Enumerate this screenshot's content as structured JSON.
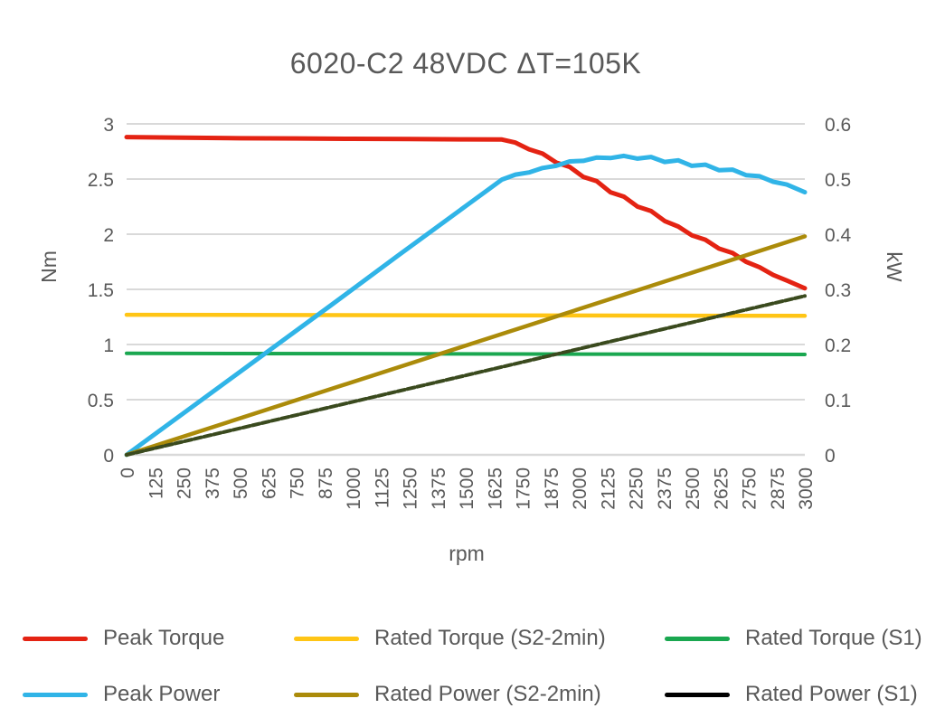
{
  "title": "6020-C2 48VDC ΔT=105K",
  "axes": {
    "x": {
      "label": "rpm",
      "min": 0,
      "max": 3000,
      "ticks": [
        0,
        125,
        250,
        375,
        500,
        625,
        750,
        875,
        1000,
        1125,
        1250,
        1375,
        1500,
        1625,
        1750,
        1875,
        2000,
        2125,
        2250,
        2375,
        2500,
        2625,
        2750,
        2875,
        3000
      ]
    },
    "y_left": {
      "label": "Nm",
      "min": 0,
      "max": 3,
      "ticks": [
        0,
        0.5,
        1,
        1.5,
        2,
        2.5,
        3
      ]
    },
    "y_right": {
      "label": "kW",
      "min": 0,
      "max": 0.6,
      "ticks": [
        0,
        0.1,
        0.2,
        0.3,
        0.4,
        0.5,
        0.6
      ]
    }
  },
  "chart_data": {
    "type": "line",
    "title": "6020-C2 48VDC ΔT=105K",
    "xlabel": "rpm",
    "ylabel_left": "Nm",
    "ylabel_right": "kW",
    "x_range": [
      0,
      3000
    ],
    "y_left_range": [
      0,
      3
    ],
    "y_right_range": [
      0,
      0.6
    ],
    "grid": true,
    "grid_color": "#d9d9d9",
    "legend_position": "bottom",
    "text_color": "#595959",
    "series": [
      {
        "name": "Peak Torque",
        "axis": "Nm",
        "color": "#e42313",
        "width": 5,
        "points": [
          [
            0,
            2.88
          ],
          [
            250,
            2.875
          ],
          [
            500,
            2.87
          ],
          [
            750,
            2.868
          ],
          [
            1000,
            2.865
          ],
          [
            1250,
            2.862
          ],
          [
            1500,
            2.86
          ],
          [
            1660,
            2.858
          ],
          [
            1720,
            2.83
          ],
          [
            1780,
            2.77
          ],
          [
            1840,
            2.73
          ],
          [
            1900,
            2.65
          ],
          [
            1960,
            2.61
          ],
          [
            2020,
            2.52
          ],
          [
            2080,
            2.48
          ],
          [
            2140,
            2.38
          ],
          [
            2200,
            2.34
          ],
          [
            2260,
            2.25
          ],
          [
            2320,
            2.21
          ],
          [
            2380,
            2.12
          ],
          [
            2440,
            2.07
          ],
          [
            2500,
            1.99
          ],
          [
            2560,
            1.95
          ],
          [
            2620,
            1.87
          ],
          [
            2680,
            1.83
          ],
          [
            2740,
            1.75
          ],
          [
            2800,
            1.7
          ],
          [
            2860,
            1.63
          ],
          [
            2920,
            1.58
          ],
          [
            3000,
            1.51
          ]
        ]
      },
      {
        "name": "Rated Torque (S2-2min)",
        "axis": "Nm",
        "color": "#ffc515",
        "width": 4.5,
        "points": [
          [
            0,
            1.27
          ],
          [
            3000,
            1.26
          ]
        ]
      },
      {
        "name": "Rated Torque (S1)",
        "axis": "Nm",
        "color": "#1aa750",
        "width": 4,
        "points": [
          [
            0,
            0.92
          ],
          [
            3000,
            0.91
          ]
        ]
      },
      {
        "name": "Peak Power",
        "axis": "kW",
        "color": "#30b4e7",
        "width": 5,
        "points": [
          [
            0,
            0
          ],
          [
            300,
            0.09
          ],
          [
            600,
            0.18
          ],
          [
            900,
            0.27
          ],
          [
            1200,
            0.361
          ],
          [
            1500,
            0.451
          ],
          [
            1600,
            0.481
          ],
          [
            1660,
            0.499
          ],
          [
            1720,
            0.508
          ],
          [
            1780,
            0.512
          ],
          [
            1840,
            0.52
          ],
          [
            1900,
            0.524
          ],
          [
            1960,
            0.532
          ],
          [
            2020,
            0.533
          ],
          [
            2080,
            0.539
          ],
          [
            2140,
            0.538
          ],
          [
            2200,
            0.542
          ],
          [
            2260,
            0.537
          ],
          [
            2320,
            0.54
          ],
          [
            2380,
            0.531
          ],
          [
            2440,
            0.534
          ],
          [
            2500,
            0.524
          ],
          [
            2560,
            0.526
          ],
          [
            2620,
            0.516
          ],
          [
            2680,
            0.517
          ],
          [
            2740,
            0.507
          ],
          [
            2800,
            0.505
          ],
          [
            2860,
            0.495
          ],
          [
            2920,
            0.49
          ],
          [
            3000,
            0.476
          ]
        ]
      },
      {
        "name": "Rated Power (S2-2min)",
        "axis": "kW",
        "color": "#ab8b0a",
        "width": 4.5,
        "points": [
          [
            0,
            0
          ],
          [
            3000,
            0.396
          ]
        ]
      },
      {
        "name": "Rated Power (S1)",
        "axis": "kW",
        "color": "#3a4a1e",
        "legend_color": "#000000",
        "width": 4,
        "dash": "8 3",
        "points": [
          [
            0,
            0
          ],
          [
            3000,
            0.288
          ]
        ]
      }
    ]
  },
  "legend": {
    "order": [
      "Peak Torque",
      "Rated Torque (S2-2min)",
      "Rated Torque (S1)",
      "Peak Power",
      "Rated Power (S2-2min)",
      "Rated Power (S1)"
    ]
  }
}
